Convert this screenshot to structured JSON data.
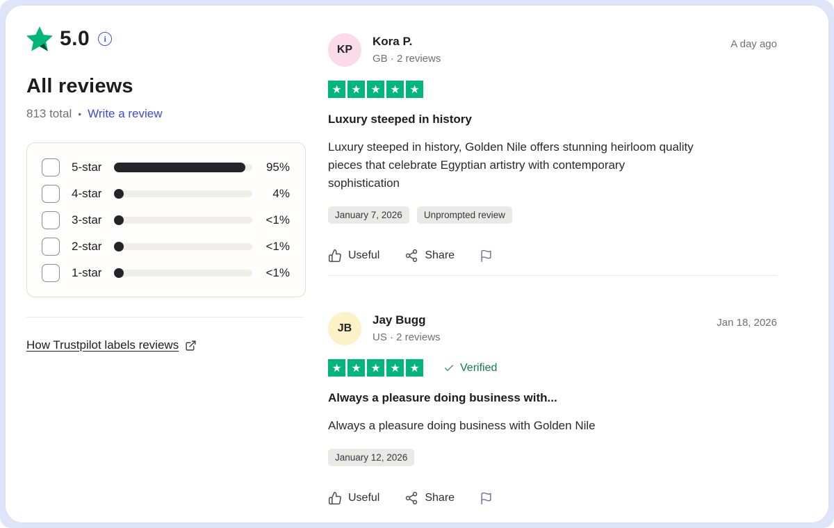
{
  "colors": {
    "brand-green": "#00b67a",
    "brand-green-dark": "#005128",
    "link-blue": "#3a4ad9",
    "verified-green": "#15794f",
    "bar-dark": "#24242b",
    "bar-track": "#f0eee8",
    "badge-bg": "#e9e9e6",
    "avatar-pink": "#fadbe7",
    "avatar-yellow": "#fbf2c7",
    "flag-purple": "#6b6c9b",
    "frame-lavender": "#dee5f9"
  },
  "summary": {
    "score": "5.0",
    "info_icon": "i",
    "title": "All reviews",
    "total": "813 total",
    "separator": "•",
    "write_review": "Write a review"
  },
  "filters": {
    "rows": [
      {
        "label": "5-star",
        "percent_label": "95%",
        "percent": 95
      },
      {
        "label": "4-star",
        "percent_label": "4%",
        "percent": 4
      },
      {
        "label": "3-star",
        "percent_label": "<1%",
        "percent": 1
      },
      {
        "label": "2-star",
        "percent_label": "<1%",
        "percent": 1
      },
      {
        "label": "1-star",
        "percent_label": "<1%",
        "percent": 1
      }
    ]
  },
  "footer_link": {
    "label": "How Trustpilot labels reviews"
  },
  "reviews": [
    {
      "initials": "KP",
      "name": "Kora P.",
      "meta": "GB · 2 reviews",
      "date": "A day ago",
      "stars": 5,
      "title": "Luxury steeped in history",
      "body": "Luxury steeped in history, Golden Nile offers stunning heirloom quality pieces that celebrate Egyptian artistry with contemporary sophistication",
      "tags": [
        "January 7, 2026",
        "Unprompted review"
      ],
      "actions": {
        "useful": "Useful",
        "share": "Share"
      }
    },
    {
      "initials": "JB",
      "name": "Jay Bugg",
      "meta": "US · 2 reviews",
      "date": "Jan 18, 2026",
      "stars": 5,
      "verified_label": "Verified",
      "title": "Always a pleasure doing business with...",
      "body": "Always a pleasure doing business with Golden Nile",
      "tags": [
        "January 12, 2026"
      ],
      "actions": {
        "useful": "Useful",
        "share": "Share"
      }
    }
  ]
}
